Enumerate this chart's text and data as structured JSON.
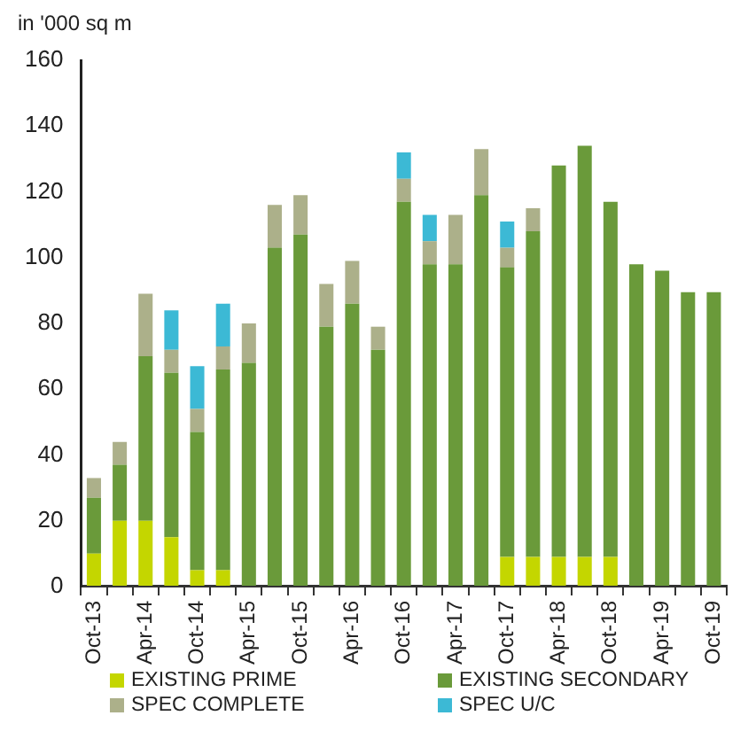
{
  "chart_data": {
    "type": "bar",
    "stacked": true,
    "ylabel": "in '000 sq m",
    "categories": [
      "Oct-13",
      null,
      "Apr-14",
      null,
      "Oct-14",
      null,
      "Apr-15",
      null,
      "Oct-15",
      null,
      "Apr-16",
      null,
      "Oct-16",
      null,
      "Apr-17",
      null,
      "Oct-17",
      null,
      "Apr-18",
      null,
      "Oct-18",
      null,
      "Apr-19",
      null,
      "Oct-19"
    ],
    "series": [
      {
        "name": "EXISTING PRIME",
        "color": "#c4d600",
        "values": [
          10,
          20,
          20,
          15,
          5,
          5,
          0,
          0,
          0,
          0,
          0,
          0,
          0,
          0,
          0,
          0,
          9,
          9,
          9,
          9,
          9,
          0,
          0,
          0,
          0
        ]
      },
      {
        "name": "EXISTING SECONDARY",
        "color": "#6a9a3a",
        "values": [
          17,
          17,
          50,
          50,
          42,
          61,
          68,
          103,
          107,
          79,
          86,
          72,
          117,
          98,
          98,
          119,
          88,
          99,
          119,
          125,
          108,
          98,
          96,
          89.5,
          89.5
        ]
      },
      {
        "name": "SPEC COMPLETE",
        "color": "#acb08a",
        "values": [
          6,
          7,
          19,
          7,
          7,
          7,
          12,
          13,
          12,
          13,
          13,
          7,
          7,
          7,
          15,
          14,
          6,
          7,
          0,
          0,
          0,
          0,
          0,
          0,
          0
        ]
      },
      {
        "name": "SPEC U/C",
        "color": "#3cb9d5",
        "values": [
          0,
          0,
          0,
          12,
          13,
          13,
          0,
          0,
          0,
          0,
          0,
          0,
          8,
          8,
          0,
          0,
          8,
          0,
          0,
          0,
          0,
          0,
          0,
          0,
          0
        ]
      }
    ],
    "ylim": [
      0,
      160
    ],
    "yticks": [
      0,
      20,
      40,
      60,
      80,
      100,
      120,
      140,
      160
    ],
    "grid": false,
    "legend": "bottom"
  }
}
